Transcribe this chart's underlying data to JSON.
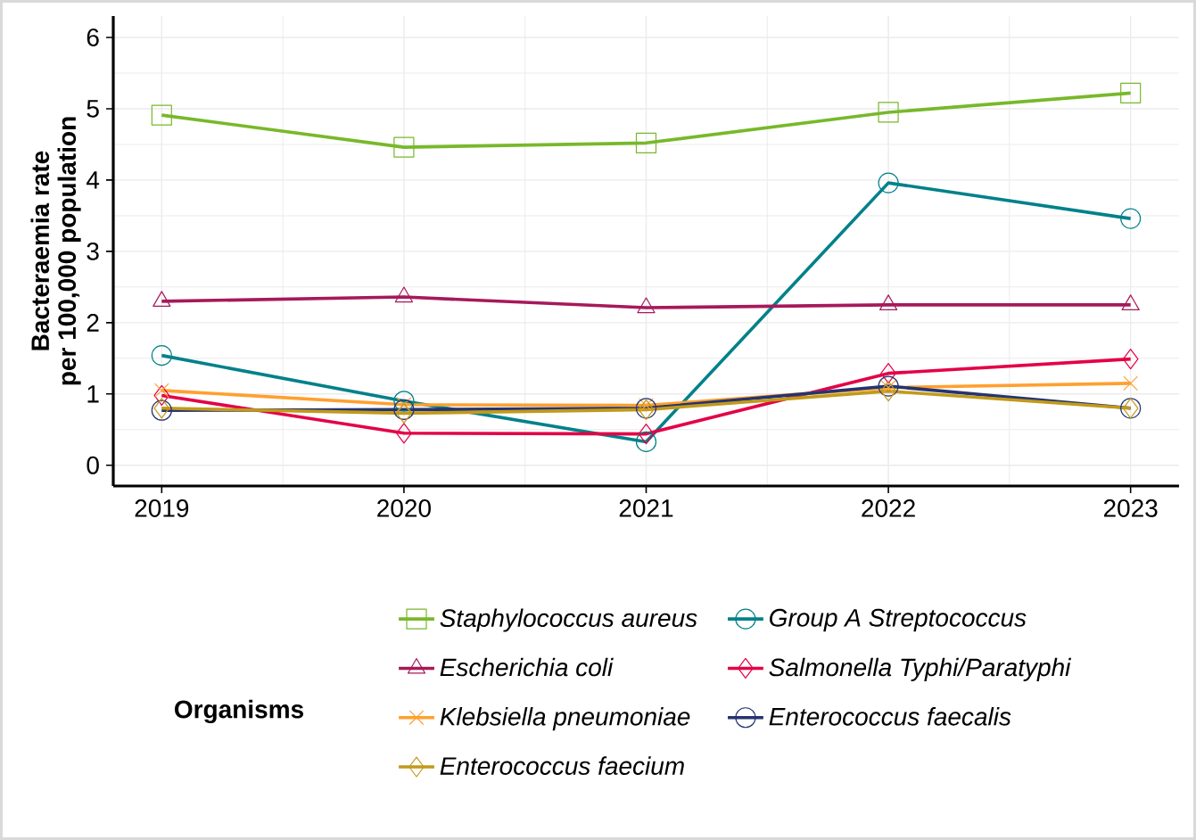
{
  "chart_data": {
    "type": "line",
    "ylabel": "Bacteraemia rate\nper 100,000 population",
    "legend_title": "Organisms",
    "x": [
      2019,
      2020,
      2021,
      2022,
      2023
    ],
    "xlim": [
      2018.8,
      2023.2
    ],
    "xticks": [
      2019,
      2020,
      2021,
      2022,
      2023
    ],
    "ylim": [
      -0.29,
      6.3
    ],
    "yticks": [
      0,
      1,
      2,
      3,
      4,
      5,
      6
    ],
    "grid": true,
    "legend": "bottom",
    "line_style": "solid",
    "series": [
      {
        "name": "Staphylococcus aureus",
        "color": "#78b82a",
        "marker": "square",
        "values": [
          4.91,
          4.46,
          4.52,
          4.95,
          5.22
        ]
      },
      {
        "name": "Group A Streptococcus",
        "color": "#00818a",
        "marker": "circle",
        "values": [
          1.54,
          0.9,
          0.33,
          3.96,
          3.46
        ]
      },
      {
        "name": "Escherichia coli",
        "color": "#a6195a",
        "marker": "triangle",
        "values": [
          2.3,
          2.36,
          2.21,
          2.25,
          2.25
        ]
      },
      {
        "name": "Salmonella Typhi/Paratyphi",
        "color": "#e40046",
        "marker": "diamond",
        "values": [
          0.98,
          0.45,
          0.44,
          1.29,
          1.49
        ]
      },
      {
        "name": "Klebsiella pneumoniae",
        "color": "#ffa02f",
        "marker": "cross",
        "values": [
          1.05,
          0.85,
          0.84,
          1.09,
          1.15
        ]
      },
      {
        "name": "Enterococcus faecalis",
        "color": "#253470",
        "marker": "circle",
        "values": [
          0.77,
          0.78,
          0.8,
          1.11,
          0.8
        ]
      },
      {
        "name": "Enterococcus faecium",
        "color": "#c19a1b",
        "marker": "diamond",
        "values": [
          0.8,
          0.73,
          0.78,
          1.04,
          0.8
        ]
      }
    ]
  }
}
